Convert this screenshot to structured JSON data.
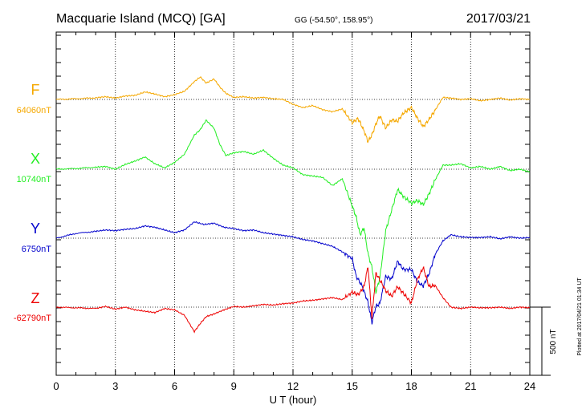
{
  "header": {
    "station": "Macquarie Island (MCQ)  [GA]",
    "coords": "GG (-54.50°, 158.95°)",
    "date": "2017/03/21"
  },
  "footer": {
    "plotted": "Plotted at 2017/04/21 01:34 UT"
  },
  "scale_bar": {
    "label": "500 nT",
    "value_nT": 500
  },
  "chart_data": {
    "type": "line",
    "title": "Macquarie Island (MCQ)  [GA]",
    "xlabel": "U T (hour)",
    "ylabel": "",
    "xlim": [
      0,
      24
    ],
    "xticks": [
      "0",
      "3",
      "6",
      "9",
      "12",
      "15",
      "18",
      "21",
      "24"
    ],
    "grid": true,
    "series": [
      {
        "name": "F",
        "baseline": "64060nT",
        "color": "#f5a800",
        "x": [
          0,
          1,
          2,
          2.5,
          3,
          3.5,
          4,
          4.5,
          5,
          5.5,
          6,
          6.5,
          7,
          7.3,
          7.6,
          8,
          8.3,
          8.6,
          9,
          9.5,
          10,
          10.5,
          11,
          11.5,
          12,
          12.5,
          13,
          13.5,
          14,
          14.5,
          15,
          15.3,
          15.6,
          15.8,
          16,
          16.2,
          16.4,
          16.7,
          17,
          17.3,
          17.6,
          17.8,
          18,
          18.3,
          18.6,
          18.9,
          19.2,
          19.6,
          20,
          20.5,
          21,
          21.5,
          22,
          22.5,
          23,
          23.5,
          24
        ],
        "y": [
          0,
          5,
          12,
          20,
          10,
          25,
          30,
          55,
          40,
          20,
          35,
          60,
          130,
          165,
          120,
          150,
          90,
          45,
          15,
          20,
          10,
          15,
          5,
          0,
          -35,
          -60,
          -45,
          -75,
          -90,
          -70,
          -170,
          -140,
          -230,
          -310,
          -260,
          -180,
          -120,
          -210,
          -150,
          -160,
          -100,
          -80,
          -60,
          -135,
          -200,
          -145,
          -80,
          15,
          10,
          0,
          5,
          -10,
          0,
          10,
          -5,
          5,
          0
        ]
      },
      {
        "name": "X",
        "baseline": "10740nT",
        "color": "#22ee22",
        "x": [
          0,
          1,
          2,
          2.5,
          3,
          3.5,
          4,
          4.5,
          5,
          5.5,
          6,
          6.5,
          7,
          7.3,
          7.6,
          8,
          8.3,
          8.6,
          9,
          9.5,
          10,
          10.5,
          11,
          11.5,
          12,
          12.5,
          13,
          13.5,
          14,
          14.5,
          15,
          15.2,
          15.4,
          15.6,
          15.8,
          16,
          16.2,
          16.4,
          16.7,
          17,
          17.3,
          17.6,
          18,
          18.3,
          18.6,
          18.9,
          19.2,
          19.6,
          20,
          20.5,
          21,
          21.5,
          22,
          22.5,
          23,
          23.5,
          24
        ],
        "y": [
          0,
          5,
          15,
          20,
          0,
          35,
          60,
          90,
          40,
          10,
          50,
          110,
          250,
          290,
          360,
          300,
          180,
          100,
          120,
          130,
          110,
          140,
          80,
          30,
          10,
          -40,
          -50,
          -60,
          -120,
          -70,
          -270,
          -350,
          -480,
          -430,
          -620,
          -720,
          -900,
          -800,
          -450,
          -300,
          -150,
          -200,
          -250,
          -230,
          -260,
          -180,
          -80,
          30,
          30,
          40,
          10,
          20,
          0,
          20,
          -10,
          0,
          -20
        ]
      },
      {
        "name": "Y",
        "baseline": "6750nT",
        "color": "#0000cc",
        "x": [
          0,
          1,
          2,
          2.5,
          3,
          3.5,
          4,
          4.5,
          5,
          5.5,
          6,
          6.5,
          7,
          7.5,
          8,
          8.5,
          9,
          9.5,
          10,
          10.5,
          11,
          11.5,
          12,
          12.5,
          13,
          13.5,
          14,
          14.5,
          15,
          15.2,
          15.5,
          15.8,
          16,
          16.2,
          16.4,
          16.7,
          17,
          17.3,
          17.6,
          18,
          18.3,
          18.6,
          18.9,
          19.2,
          19.6,
          20,
          20.5,
          21,
          21.5,
          22,
          22.5,
          23,
          23.5,
          24
        ],
        "y": [
          0,
          35,
          50,
          60,
          55,
          65,
          70,
          90,
          80,
          60,
          40,
          60,
          120,
          100,
          110,
          80,
          70,
          55,
          60,
          40,
          30,
          20,
          10,
          -10,
          -20,
          -40,
          -60,
          -100,
          -150,
          -280,
          -350,
          -470,
          -620,
          -500,
          -480,
          -280,
          -300,
          -170,
          -230,
          -230,
          -320,
          -350,
          -260,
          -120,
          -20,
          25,
          10,
          5,
          5,
          10,
          -5,
          10,
          0,
          5
        ]
      },
      {
        "name": "Z",
        "baseline": "-62790nT",
        "color": "#ee0000",
        "x": [
          0,
          1,
          2,
          2.5,
          3,
          3.5,
          4,
          4.5,
          5,
          5.5,
          6,
          6.5,
          7,
          7.3,
          7.6,
          8,
          8.5,
          9,
          9.5,
          10,
          10.5,
          11,
          11.5,
          12,
          12.5,
          13,
          13.5,
          14,
          14.5,
          15,
          15.3,
          15.6,
          15.8,
          16,
          16.2,
          16.4,
          16.7,
          17,
          17.3,
          17.6,
          18,
          18.3,
          18.6,
          18.9,
          19.2,
          19.6,
          20,
          20.5,
          21,
          21.5,
          22,
          22.5,
          23,
          23.5,
          24
        ],
        "y": [
          0,
          -5,
          -10,
          5,
          -15,
          0,
          -20,
          -30,
          -40,
          -10,
          -20,
          -60,
          -180,
          -120,
          -70,
          -50,
          -20,
          5,
          0,
          10,
          20,
          15,
          25,
          30,
          45,
          50,
          60,
          70,
          55,
          110,
          90,
          150,
          300,
          -80,
          250,
          200,
          120,
          80,
          150,
          100,
          30,
          200,
          290,
          150,
          160,
          70,
          0,
          -10,
          0,
          -5,
          -5,
          0,
          -10,
          0,
          -5
        ]
      }
    ]
  }
}
